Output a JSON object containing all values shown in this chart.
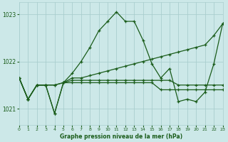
{
  "title": "Graphe pression niveau de la mer (hPa)",
  "bg_color": "#cce8e8",
  "grid_color": "#aacece",
  "line_color": "#1a5c1a",
  "xlim": [
    0,
    23
  ],
  "ylim": [
    1020.65,
    1023.25
  ],
  "yticks": [
    1021,
    1022,
    1023
  ],
  "xticks": [
    0,
    1,
    2,
    3,
    4,
    5,
    6,
    7,
    8,
    9,
    10,
    11,
    12,
    13,
    14,
    15,
    16,
    17,
    18,
    19,
    20,
    21,
    22,
    23
  ],
  "series1": [
    1021.65,
    1021.2,
    1021.5,
    1021.5,
    1020.9,
    1021.55,
    1021.75,
    1022.0,
    1022.3,
    1022.65,
    1022.85,
    1023.05,
    1022.85,
    1022.85,
    1022.45,
    1021.95,
    1021.65,
    1021.85,
    1021.15,
    1021.2,
    1021.15,
    1021.35,
    1021.95,
    1022.8
  ],
  "series2": [
    1021.65,
    1021.2,
    1021.5,
    1021.5,
    1020.9,
    1021.55,
    1021.65,
    1021.65,
    1021.7,
    1021.75,
    1021.8,
    1021.85,
    1021.9,
    1021.95,
    1022.0,
    1022.05,
    1022.1,
    1022.15,
    1022.2,
    1022.25,
    1022.3,
    1022.35,
    1022.55,
    1022.8
  ],
  "series3": [
    1021.65,
    1021.2,
    1021.5,
    1021.5,
    1021.5,
    1021.55,
    1021.6,
    1021.6,
    1021.6,
    1021.6,
    1021.6,
    1021.6,
    1021.6,
    1021.6,
    1021.6,
    1021.6,
    1021.6,
    1021.6,
    1021.5,
    1021.5,
    1021.5,
    1021.5,
    1021.5,
    1021.5
  ],
  "series4": [
    1021.65,
    1021.2,
    1021.5,
    1021.5,
    1021.5,
    1021.55,
    1021.55,
    1021.55,
    1021.55,
    1021.55,
    1021.55,
    1021.55,
    1021.55,
    1021.55,
    1021.55,
    1021.55,
    1021.4,
    1021.4,
    1021.4,
    1021.4,
    1021.4,
    1021.4,
    1021.4,
    1021.4
  ]
}
